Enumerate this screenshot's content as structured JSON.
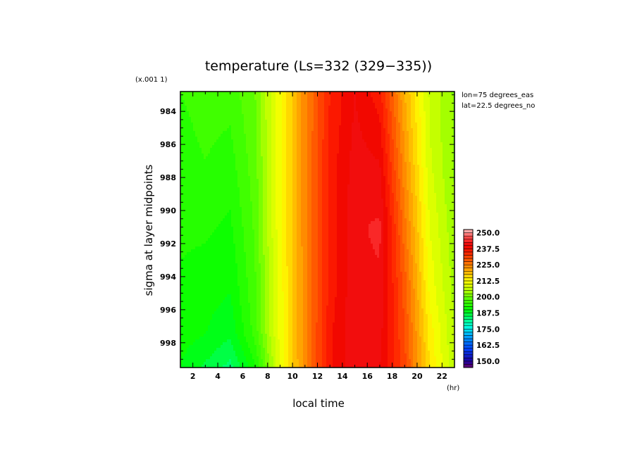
{
  "chart_data": {
    "type": "heatmap",
    "title": "temperature (Ls=332 (329−335))",
    "xlabel": "local time",
    "x_unit": "(hr)",
    "ylabel": "sigma at layer midpoints",
    "y_scale_note": "(x.001 1)",
    "annotations": [
      "lon=75 degrees_eas",
      "lat=22.5 degrees_no"
    ],
    "xlim": [
      1,
      23
    ],
    "ylim": [
      999.5,
      982.8
    ],
    "x_ticks": [
      2,
      4,
      6,
      8,
      10,
      12,
      14,
      16,
      18,
      20,
      22
    ],
    "x_tick_labels": [
      "2",
      "4",
      "6",
      "8",
      "10",
      "12",
      "14",
      "16",
      "18",
      "20",
      "22"
    ],
    "y_ticks": [
      984,
      986,
      988,
      990,
      992,
      994,
      996,
      998
    ],
    "y_tick_labels": [
      "984",
      "986",
      "988",
      "990",
      "992",
      "994",
      "996",
      "998"
    ],
    "x": [
      1,
      3,
      5,
      7,
      9,
      11,
      13,
      15,
      17,
      19,
      21,
      23
    ],
    "y": [
      982.8,
      987.0,
      991.0,
      995.0,
      997.5,
      999.5
    ],
    "z": [
      [
        195,
        196,
        196,
        200,
        212,
        224,
        235,
        240,
        236,
        220,
        207,
        202
      ],
      [
        194,
        195,
        194,
        199,
        212,
        224,
        236,
        241,
        240,
        223,
        208,
        202
      ],
      [
        193,
        193,
        192,
        198,
        212,
        224,
        236,
        242,
        243,
        226,
        210,
        203
      ],
      [
        192,
        191,
        190,
        197,
        211,
        224,
        236,
        242,
        242,
        229,
        212,
        204
      ],
      [
        191,
        190,
        188,
        196,
        211,
        224,
        237,
        242,
        241,
        230,
        214,
        205
      ],
      [
        190,
        187,
        184,
        192,
        210,
        224,
        237,
        242,
        240,
        231,
        215,
        205
      ]
    ],
    "colorbar": {
      "min": 145,
      "max": 252.5,
      "step": 2.5,
      "labels": [
        "250.0",
        "237.5",
        "225.0",
        "212.5",
        "200.0",
        "187.5",
        "175.0",
        "162.5",
        "150.0"
      ],
      "label_values": [
        250,
        237.5,
        225,
        212.5,
        200,
        187.5,
        175,
        162.5,
        150
      ]
    },
    "colormap_stops": [
      [
        145,
        "#6a006a"
      ],
      [
        150,
        "#1a00a0"
      ],
      [
        160,
        "#0044ff"
      ],
      [
        170,
        "#00aaff"
      ],
      [
        177,
        "#00ffdd"
      ],
      [
        183,
        "#00ff80"
      ],
      [
        190,
        "#00ff00"
      ],
      [
        200,
        "#66ff00"
      ],
      [
        205,
        "#b8ff00"
      ],
      [
        212.5,
        "#ffff00"
      ],
      [
        220,
        "#ffb000"
      ],
      [
        228,
        "#ff6000"
      ],
      [
        235,
        "#ff2000"
      ],
      [
        240,
        "#ee0000"
      ],
      [
        246,
        "#ff4040"
      ],
      [
        250,
        "#ff9090"
      ],
      [
        252.5,
        "#ffc0c0"
      ]
    ]
  }
}
